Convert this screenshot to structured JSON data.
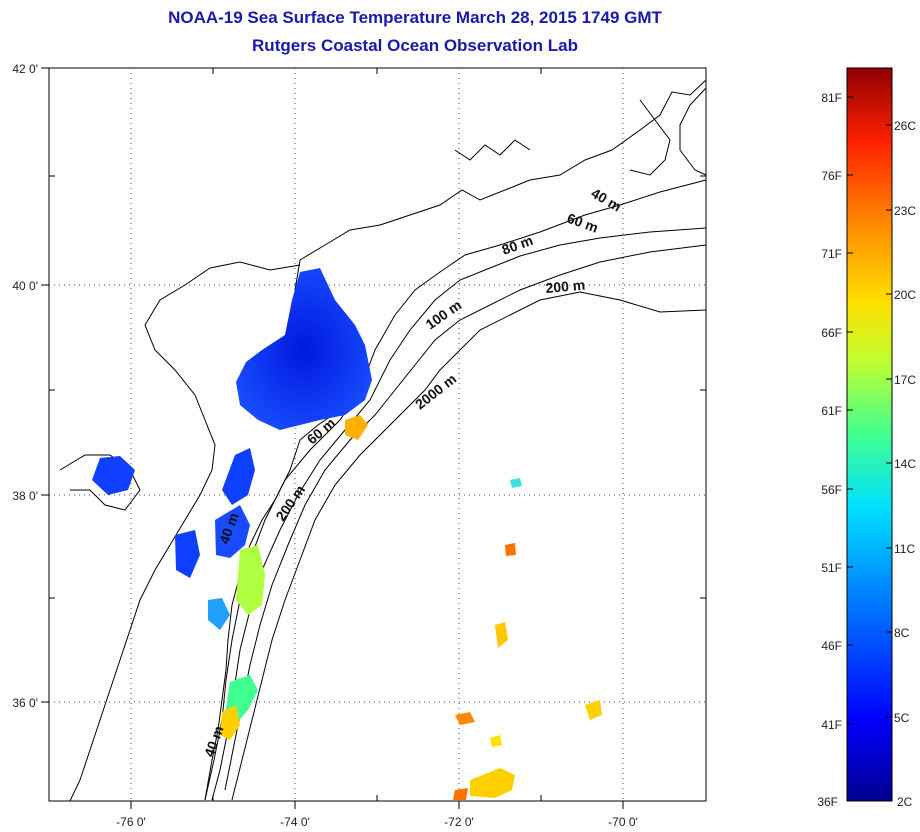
{
  "title": "NOAA-19 Sea Surface Temperature March 28, 2015 1749 GMT",
  "subtitle": "Rutgers Coastal Ocean Observation Lab",
  "map": {
    "lat_labels": [
      "42 0'",
      "40 0'",
      "38 0'",
      "36 0'"
    ],
    "lon_labels": [
      "-76 0'",
      "-74 0'",
      "-72 0'",
      "-70 0'"
    ],
    "grid": "dotted",
    "isobath_labels": [
      "40 m",
      "60 m",
      "80 m",
      "200 m",
      "100 m",
      "2000 m",
      "60 m",
      "40 m",
      "200 m",
      "40 m"
    ]
  },
  "colorbar": {
    "f_labels": [
      "81F",
      "76F",
      "71F",
      "66F",
      "61F",
      "56F",
      "51F",
      "46F",
      "41F",
      "36F"
    ],
    "c_labels": [
      "26C",
      "23C",
      "20C",
      "17C",
      "14C",
      "11C",
      "8C",
      "5C",
      "2C"
    ],
    "range_f": [
      36,
      83
    ],
    "colors": [
      "#00008f",
      "#0000ff",
      "#0080ff",
      "#00e0ff",
      "#40ff90",
      "#c0ff30",
      "#ffe000",
      "#ff9000",
      "#ff2000",
      "#8f0000"
    ]
  }
}
